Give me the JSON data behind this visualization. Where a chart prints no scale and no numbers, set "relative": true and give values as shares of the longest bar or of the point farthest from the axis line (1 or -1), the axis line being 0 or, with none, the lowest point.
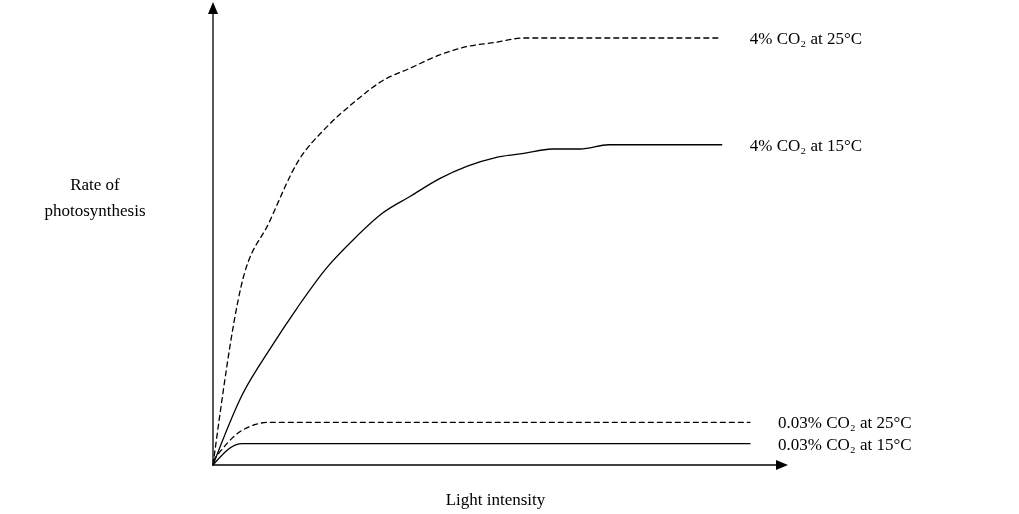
{
  "chart_data": {
    "type": "line",
    "relative": true,
    "xlabel": "Light intensity",
    "ylabel": "Rate of photosynthesis",
    "categories": [
      null,
      null,
      null,
      null,
      null,
      null,
      null,
      null,
      null,
      null,
      null,
      null,
      null,
      null,
      null,
      null,
      null,
      null,
      null,
      null
    ],
    "series": [
      {
        "name": "4% CO₂ at 25°C",
        "color": "#000000",
        "line_style": "dashed",
        "values": [
          0,
          0.42,
          0.57,
          0.71,
          0.79,
          0.85,
          0.9,
          0.93,
          0.96,
          0.98,
          0.99,
          1,
          1,
          1,
          1,
          1,
          1,
          1,
          1,
          null
        ]
      },
      {
        "name": "4% CO₂ at 15°C",
        "color": "#000000",
        "line_style": "solid",
        "values": [
          0,
          0.16,
          0.27,
          0.37,
          0.46,
          0.53,
          0.59,
          0.63,
          0.67,
          0.7,
          0.72,
          0.73,
          0.74,
          0.74,
          0.75,
          0.75,
          0.75,
          0.75,
          0.75,
          null
        ]
      },
      {
        "name": "0.03% CO₂ at 25°C",
        "color": "#000000",
        "line_style": "dashed",
        "values": [
          0.01,
          0.08,
          0.1,
          0.1,
          0.1,
          0.1,
          0.1,
          0.1,
          0.1,
          0.1,
          0.1,
          0.1,
          0.1,
          0.1,
          0.1,
          0.1,
          0.1,
          0.1,
          0.1,
          0.1
        ]
      },
      {
        "name": "0.03% CO₂ at 15°C",
        "color": "#000000",
        "line_style": "solid",
        "values": [
          0,
          0.05,
          0.05,
          0.05,
          0.05,
          0.05,
          0.05,
          0.05,
          0.05,
          0.05,
          0.05,
          0.05,
          0.05,
          0.05,
          0.05,
          0.05,
          0.05,
          0.05,
          0.05,
          0.05
        ]
      }
    ]
  }
}
